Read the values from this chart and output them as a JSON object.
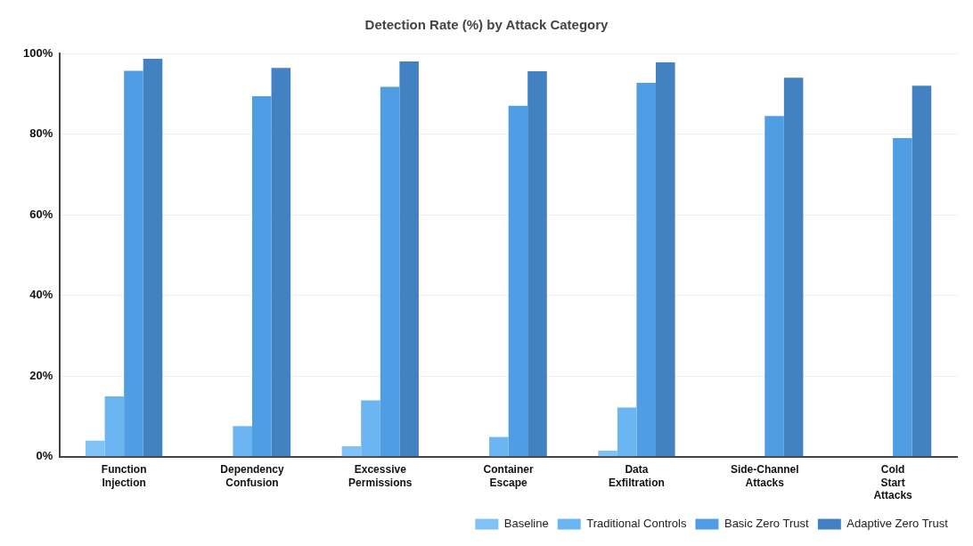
{
  "chart_data": {
    "type": "bar",
    "title": "Detection Rate (%) by Attack Category",
    "categories": [
      "Function Injection",
      "Dependency Confusion",
      "Excessive Permissions",
      "Container Escape",
      "Data Exfiltration",
      "Side-Channel Attacks",
      "Cold Start Attacks"
    ],
    "series": [
      {
        "name": "Baseline",
        "color": "#80c2f6",
        "values": [
          4,
          0,
          2.6,
          0,
          1.5,
          0,
          0
        ]
      },
      {
        "name": "Traditional Controls",
        "color": "#6bb5f3",
        "values": [
          15,
          7.6,
          14,
          4.9,
          12.2,
          0,
          0
        ]
      },
      {
        "name": "Basic Zero Trust",
        "color": "#4f9de3",
        "values": [
          95.7,
          89.4,
          91.7,
          87,
          92.7,
          84.5,
          79
        ]
      },
      {
        "name": "Adaptive Zero Trust",
        "color": "#4281c2",
        "values": [
          98.7,
          96.4,
          98,
          95.6,
          97.8,
          94,
          92
        ]
      }
    ],
    "ylim": [
      0,
      100
    ],
    "yticks": [
      {
        "value": 0,
        "label": "0%"
      },
      {
        "value": 20,
        "label": "20%"
      },
      {
        "value": 40,
        "label": "40%"
      },
      {
        "value": 60,
        "label": "60%"
      },
      {
        "value": 80,
        "label": "80%"
      },
      {
        "value": 100,
        "label": "100%"
      }
    ],
    "grid": "y",
    "legend": "bottom right"
  }
}
